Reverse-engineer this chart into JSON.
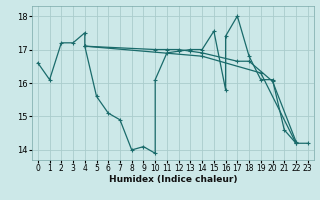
{
  "xlabel": "Humidex (Indice chaleur)",
  "bg_color": "#cce8e8",
  "grid_color": "#aacccc",
  "line_color": "#1a6b6b",
  "ylim": [
    13.7,
    18.3
  ],
  "xlim": [
    -0.5,
    23.5
  ],
  "yticks": [
    14,
    15,
    16,
    17,
    18
  ],
  "xticks": [
    0,
    1,
    2,
    3,
    4,
    5,
    6,
    7,
    8,
    9,
    10,
    11,
    12,
    13,
    14,
    15,
    16,
    17,
    18,
    19,
    20,
    21,
    22,
    23
  ],
  "series": [
    {
      "x": [
        0,
        1,
        2,
        3,
        4,
        4,
        5,
        6,
        7,
        8,
        9,
        10,
        10,
        11,
        12,
        13,
        14,
        15,
        16,
        16,
        17,
        18,
        19,
        20,
        21,
        22,
        23
      ],
      "y": [
        16.6,
        16.1,
        17.2,
        17.2,
        17.5,
        17.1,
        15.6,
        15.1,
        14.9,
        14.0,
        14.1,
        13.9,
        16.1,
        16.9,
        16.95,
        17.0,
        17.0,
        17.55,
        15.8,
        17.4,
        18.0,
        16.8,
        16.1,
        16.1,
        14.6,
        14.2,
        14.2
      ]
    },
    {
      "x": [
        4,
        10,
        11,
        12,
        13,
        14,
        17,
        18,
        20,
        22
      ],
      "y": [
        17.1,
        17.0,
        17.0,
        17.0,
        16.95,
        16.9,
        16.65,
        16.65,
        16.05,
        14.25
      ]
    },
    {
      "x": [
        4,
        14,
        19,
        22
      ],
      "y": [
        17.1,
        16.8,
        16.3,
        14.2
      ]
    }
  ]
}
